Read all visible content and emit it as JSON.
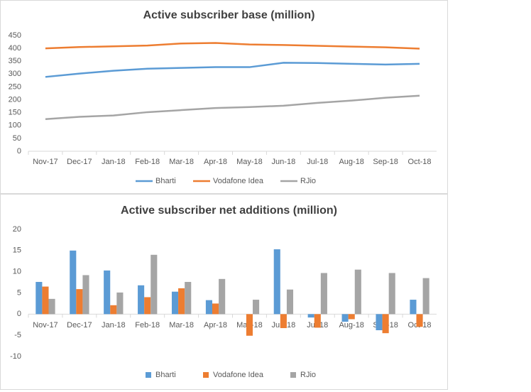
{
  "chart_data": [
    {
      "type": "line",
      "title": "Active subscriber base (million)",
      "categories": [
        "Nov-17",
        "Dec-17",
        "Jan-18",
        "Feb-18",
        "Mar-18",
        "Apr-18",
        "May-18",
        "Jun-18",
        "Jul-18",
        "Aug-18",
        "Sep-18",
        "Oct-18"
      ],
      "series": [
        {
          "name": "Bharti",
          "color": "#5b9bd5",
          "values": [
            289,
            302,
            313,
            321,
            324,
            327,
            327,
            344,
            343,
            340,
            337,
            340
          ]
        },
        {
          "name": "Vodafone Idea",
          "color": "#ed7d31",
          "values": [
            400,
            405,
            408,
            411,
            419,
            421,
            415,
            413,
            410,
            407,
            404,
            399
          ]
        },
        {
          "name": "RJio",
          "color": "#a5a5a5",
          "values": [
            125,
            134,
            139,
            152,
            160,
            168,
            172,
            177,
            188,
            197,
            208,
            216
          ]
        }
      ],
      "ylim": [
        0,
        450
      ],
      "yticks": [
        0,
        50,
        100,
        150,
        200,
        250,
        300,
        350,
        400,
        450
      ],
      "grid": false,
      "legend": "bottom"
    },
    {
      "type": "bar",
      "title": "Active subscriber net additions (million)",
      "categories": [
        "Nov-17",
        "Dec-17",
        "Jan-18",
        "Feb-18",
        "Mar-18",
        "Apr-18",
        "May-18",
        "Jun-18",
        "Jul-18",
        "Aug-18",
        "Sep-18",
        "Oct-18"
      ],
      "series": [
        {
          "name": "Bharti",
          "color": "#5b9bd5",
          "values": [
            7.6,
            15,
            10.3,
            6.8,
            5.3,
            3.3,
            0,
            15.3,
            -0.8,
            -1.8,
            -3.8,
            3.4
          ]
        },
        {
          "name": "Vodafone Idea",
          "color": "#ed7d31",
          "values": [
            6.5,
            5.9,
            2.1,
            4.0,
            6.1,
            2.5,
            -5.1,
            -3.3,
            -3.2,
            -1.2,
            -4.5,
            -3.0
          ]
        },
        {
          "name": "RJio",
          "color": "#a5a5a5",
          "values": [
            3.6,
            9.2,
            5.1,
            14.0,
            7.6,
            8.3,
            3.4,
            5.8,
            9.7,
            10.5,
            9.7,
            8.5
          ]
        }
      ],
      "ylim": [
        -10,
        20
      ],
      "yticks": [
        -10,
        -5,
        0,
        5,
        10,
        15,
        20
      ],
      "grid": false,
      "legend": "bottom"
    }
  ]
}
